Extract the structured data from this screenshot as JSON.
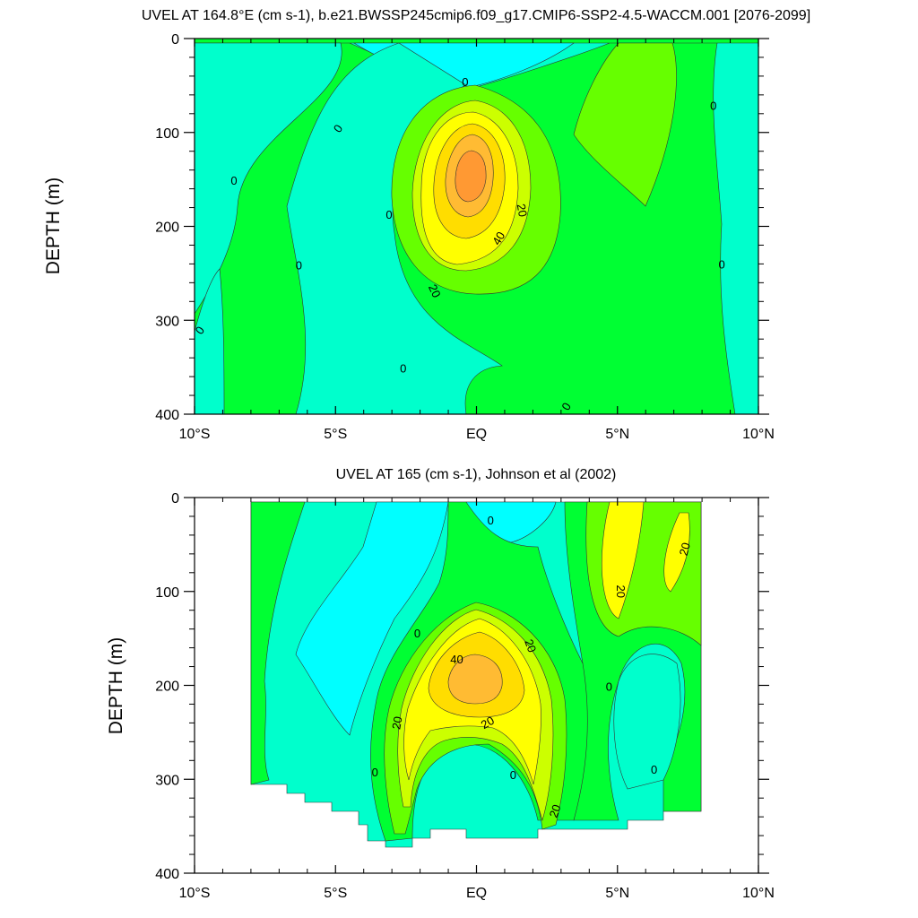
{
  "chart_data": [
    {
      "type": "contour",
      "title": "UVEL AT 164.8°E (cm s-1), b.e21.BWSSP245cmip6.f09_g17.CMIP6-SSP2-4.5-WACCM.001 [2076-2099]",
      "ylabel": "DEPTH (m)",
      "xlabel": "",
      "xlim": [
        -10,
        10
      ],
      "ylim": [
        400,
        0
      ],
      "y_inverted": true,
      "xticks": [
        {
          "value": -10,
          "label": "10°S"
        },
        {
          "value": -5,
          "label": "5°S"
        },
        {
          "value": 0,
          "label": "EQ"
        },
        {
          "value": 5,
          "label": "5°N"
        },
        {
          "value": 10,
          "label": "10°N"
        }
      ],
      "yticks": [
        0,
        100,
        200,
        300,
        400
      ],
      "data_region": {
        "x": [
          -10,
          10
        ],
        "depth": [
          5,
          400
        ]
      },
      "contour_levels": [
        0,
        10,
        20,
        30,
        40
      ],
      "level_colors": [
        "#00ffff",
        "#00ffcc",
        "#00ff33",
        "#66ff00",
        "#ccff00",
        "#ffff00",
        "#ffdd00",
        "#ffbb33",
        "#ff9933"
      ],
      "core": {
        "lon": -0.2,
        "depth": 155,
        "max_value": 45
      },
      "contour_labels": [
        {
          "text": "0",
          "lon": -0.4,
          "depth": 47,
          "rotate": 0
        },
        {
          "text": "0",
          "lon": -4.9,
          "depth": 96,
          "rotate": -55
        },
        {
          "text": "0",
          "lon": -8.6,
          "depth": 152,
          "rotate": 0
        },
        {
          "text": "0",
          "lon": -3.1,
          "depth": 188,
          "rotate": 0
        },
        {
          "text": "0",
          "lon": -6.3,
          "depth": 242,
          "rotate": 0
        },
        {
          "text": "0",
          "lon": -9.8,
          "depth": 311,
          "rotate": -55
        },
        {
          "text": "0",
          "lon": -2.6,
          "depth": 352,
          "rotate": 0
        },
        {
          "text": "0",
          "lon": 3.2,
          "depth": 392,
          "rotate": -60
        },
        {
          "text": "0",
          "lon": 8.4,
          "depth": 72,
          "rotate": 0
        },
        {
          "text": "0",
          "lon": 8.7,
          "depth": 241,
          "rotate": 0
        },
        {
          "text": "20",
          "lon": 1.6,
          "depth": 183,
          "rotate": 80
        },
        {
          "text": "40",
          "lon": 0.8,
          "depth": 213,
          "rotate": -60
        },
        {
          "text": "20",
          "lon": -1.5,
          "depth": 269,
          "rotate": 65
        }
      ]
    },
    {
      "type": "contour",
      "title": "UVEL AT 165 (cm s-1), Johnson et al (2002)",
      "ylabel": "DEPTH (m)",
      "xlabel": "",
      "xlim": [
        -10,
        10
      ],
      "ylim": [
        400,
        0
      ],
      "y_inverted": true,
      "xticks": [
        {
          "value": -10,
          "label": "10°S"
        },
        {
          "value": -5,
          "label": "5°S"
        },
        {
          "value": 0,
          "label": "EQ"
        },
        {
          "value": 5,
          "label": "5°N"
        },
        {
          "value": 10,
          "label": "10°N"
        }
      ],
      "yticks": [
        0,
        100,
        200,
        300,
        400
      ],
      "data_region": {
        "x": [
          -8,
          8
        ],
        "depth": [
          5,
          355
        ]
      },
      "contour_levels": [
        0,
        10,
        20,
        30,
        40
      ],
      "level_colors": [
        "#00ffff",
        "#00ffcc",
        "#00ff33",
        "#66ff00",
        "#ccff00",
        "#ffff00",
        "#ffdd00",
        "#ffbb33",
        "#ff9933"
      ],
      "core": {
        "lon": 0.1,
        "depth": 185,
        "max_value": 45
      },
      "contour_labels": [
        {
          "text": "0",
          "lon": 0.5,
          "depth": 25,
          "rotate": 0
        },
        {
          "text": "20",
          "lon": 7.4,
          "depth": 55,
          "rotate": -75
        },
        {
          "text": "20",
          "lon": 5.1,
          "depth": 100,
          "rotate": 90
        },
        {
          "text": "0",
          "lon": -2.1,
          "depth": 145,
          "rotate": 0
        },
        {
          "text": "20",
          "lon": 1.9,
          "depth": 158,
          "rotate": 70
        },
        {
          "text": "40",
          "lon": -0.7,
          "depth": 173,
          "rotate": 0
        },
        {
          "text": "0",
          "lon": 4.7,
          "depth": 202,
          "rotate": 0
        },
        {
          "text": "20",
          "lon": -2.8,
          "depth": 240,
          "rotate": -80
        },
        {
          "text": "20",
          "lon": 0.4,
          "depth": 240,
          "rotate": -30
        },
        {
          "text": "0",
          "lon": -3.6,
          "depth": 293,
          "rotate": 0
        },
        {
          "text": "0",
          "lon": 1.3,
          "depth": 296,
          "rotate": 0
        },
        {
          "text": "0",
          "lon": 6.3,
          "depth": 290,
          "rotate": 0
        },
        {
          "text": "20",
          "lon": 2.8,
          "depth": 334,
          "rotate": -70
        }
      ]
    }
  ]
}
